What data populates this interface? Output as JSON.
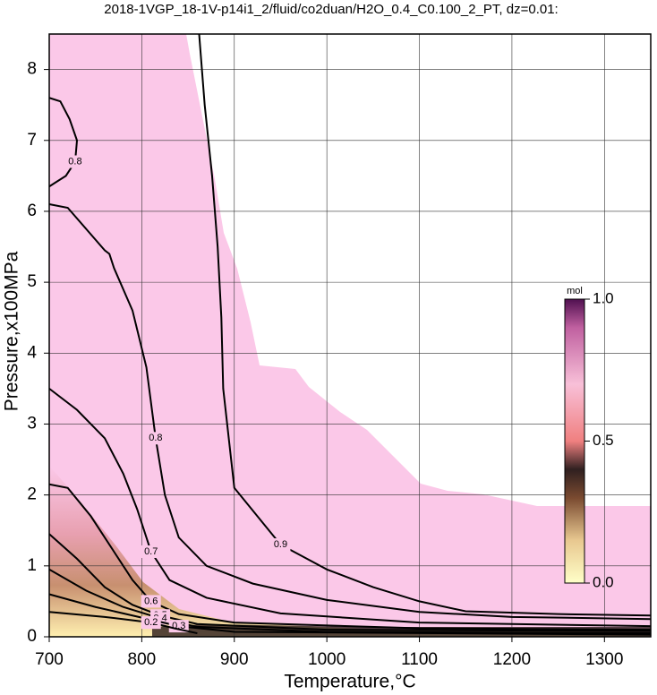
{
  "chart_data": {
    "type": "contour",
    "title": "2018-1VGP_18-1V-p14i1_2/fluid/co2duan/H2O_0.4_C0.100_2_PT, dz=0.01:",
    "x_label": "Temperature,°C",
    "y_label": "Pressure,x100MPa",
    "xlim": [
      700,
      1350
    ],
    "ylim": [
      0,
      8.5
    ],
    "xticks": [
      700,
      800,
      900,
      1000,
      1100,
      1200,
      1300
    ],
    "yticks": [
      0,
      1,
      2,
      3,
      4,
      5,
      6,
      7,
      8
    ],
    "grid": true,
    "colorbar": {
      "label": "mol",
      "lim": [
        0,
        1
      ],
      "ticks": [
        {
          "value": 0,
          "label": "0.0"
        },
        {
          "value": 0.5,
          "label": "0.5"
        },
        {
          "value": 1,
          "label": "1.0"
        }
      ]
    },
    "contours": [
      {
        "level": 0.9,
        "x": [
          862,
          868,
          876,
          882,
          886,
          888,
          900,
          950,
          1000,
          1050,
          1100,
          1150,
          1250,
          1350
        ],
        "y": [
          8.5,
          7.5,
          6.5,
          5.5,
          4.5,
          3.5,
          2.1,
          1.3,
          0.95,
          0.7,
          0.5,
          0.36,
          0.32,
          0.3
        ]
      },
      {
        "level": 0.8,
        "x": [
          700,
          720,
          740,
          760,
          765,
          770,
          790,
          805,
          815,
          825,
          840,
          870,
          920,
          1000,
          1100,
          1200,
          1350
        ],
        "y": [
          6.1,
          6.05,
          5.75,
          5.45,
          5.4,
          5.2,
          4.6,
          3.8,
          2.8,
          2.0,
          1.4,
          1.0,
          0.75,
          0.52,
          0.35,
          0.28,
          0.25
        ]
      },
      {
        "level": 0.8,
        "x": [
          700,
          712,
          722,
          730,
          728,
          718,
          706,
          700
        ],
        "y": [
          7.6,
          7.55,
          7.3,
          7.0,
          6.7,
          6.5,
          6.4,
          6.35
        ]
      },
      {
        "level": 0.7,
        "x": [
          700,
          730,
          760,
          780,
          795,
          810,
          830,
          870,
          950,
          1100,
          1350
        ],
        "y": [
          3.5,
          3.2,
          2.8,
          2.3,
          1.8,
          1.2,
          0.8,
          0.55,
          0.33,
          0.2,
          0.15
        ]
      },
      {
        "level": 0.6,
        "x": [
          700,
          720,
          745,
          770,
          790,
          810,
          840,
          900,
          1100,
          1350
        ],
        "y": [
          2.15,
          2.1,
          1.7,
          1.2,
          0.8,
          0.5,
          0.32,
          0.2,
          0.12,
          0.1
        ]
      },
      {
        "level": 0.5,
        "x": [
          700,
          730,
          760,
          790,
          820,
          860,
          1000,
          1350
        ],
        "y": [
          1.45,
          1.1,
          0.7,
          0.45,
          0.3,
          0.18,
          0.1,
          0.08
        ]
      },
      {
        "level": 0.4,
        "x": [
          700,
          740,
          780,
          820,
          860,
          1000,
          1350
        ],
        "y": [
          0.95,
          0.65,
          0.42,
          0.26,
          0.14,
          0.07,
          0.05
        ]
      },
      {
        "level": 0.3,
        "x": [
          700,
          750,
          800,
          840,
          900,
          1350
        ],
        "y": [
          0.6,
          0.42,
          0.27,
          0.15,
          0.07,
          0.03
        ]
      },
      {
        "level": 0.2,
        "x": [
          700,
          760,
          810,
          835,
          860
        ],
        "y": [
          0.35,
          0.28,
          0.2,
          0.12,
          0.05
        ]
      }
    ]
  }
}
